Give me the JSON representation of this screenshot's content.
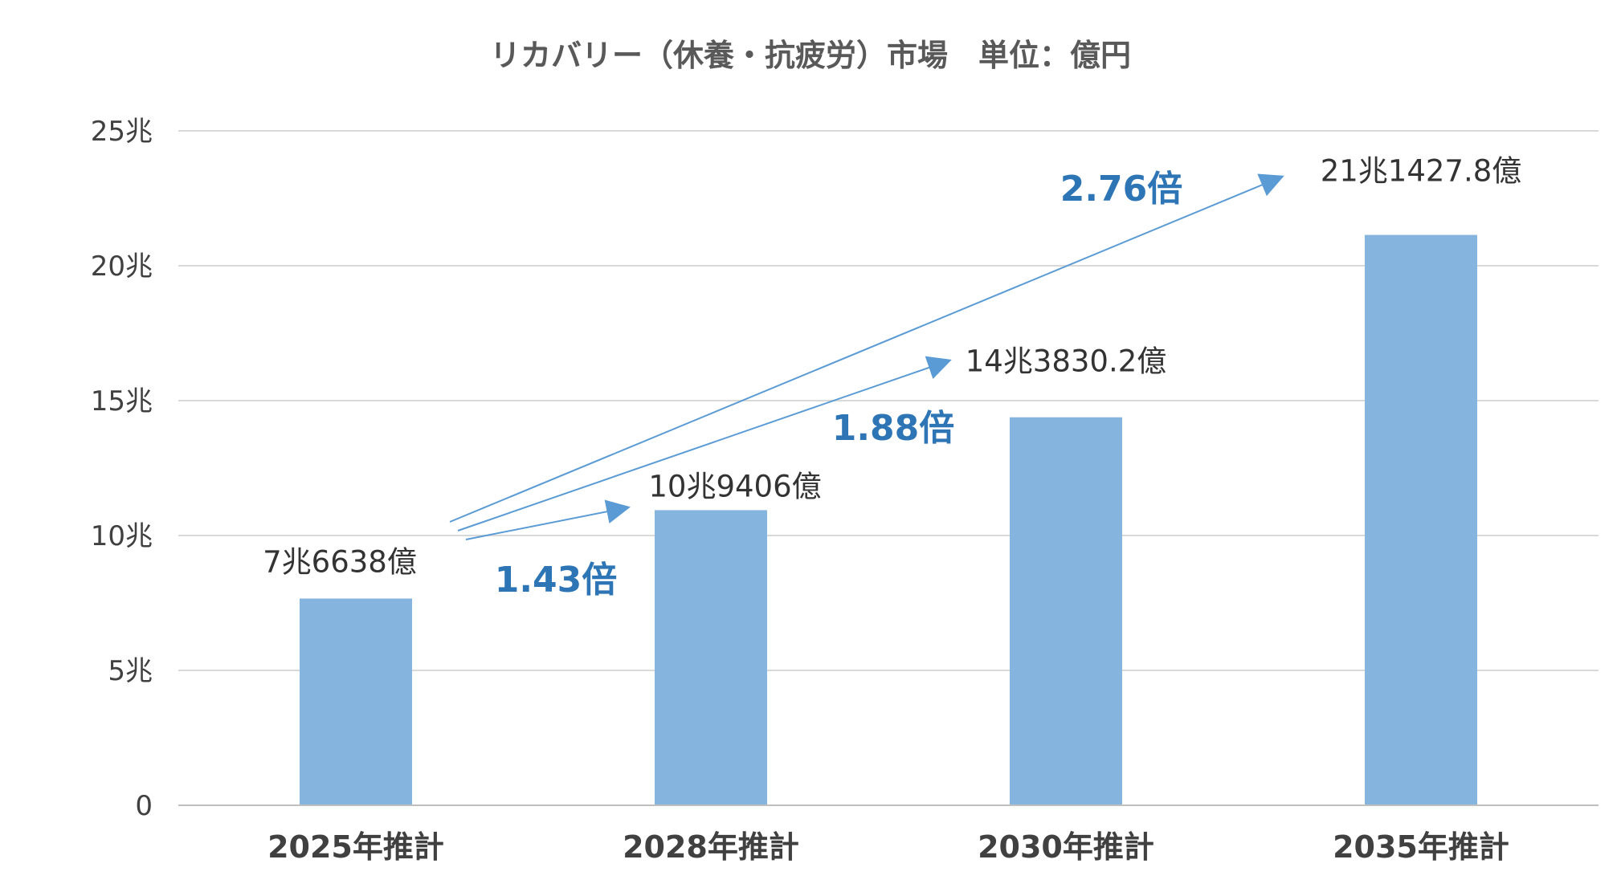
{
  "chart_data": {
    "type": "bar",
    "title": "リカバリー（休養・抗疲労）市場　単位：億円",
    "categories": [
      "2025年推計",
      "2028年推計",
      "2030年推計",
      "2035年推計"
    ],
    "values": [
      76638,
      109406,
      143830.2,
      211427.8
    ],
    "data_labels": [
      "7兆6638億",
      "10兆9406億",
      "14兆3830.2億",
      "21兆1427.8億"
    ],
    "ylim": [
      0,
      250000
    ],
    "yticks": [
      {
        "value": 0,
        "label": "0"
      },
      {
        "value": 50000,
        "label": "5兆"
      },
      {
        "value": 100000,
        "label": "10兆"
      },
      {
        "value": 150000,
        "label": "15兆"
      },
      {
        "value": 200000,
        "label": "20兆"
      },
      {
        "value": 250000,
        "label": "25兆"
      }
    ],
    "grid": true,
    "bar_color": "#85b4df",
    "growth_annotations": [
      {
        "from": 0,
        "to": 1,
        "label": "1.43倍"
      },
      {
        "from": 0,
        "to": 2,
        "label": "1.88倍"
      },
      {
        "from": 0,
        "to": 3,
        "label": "2.76倍"
      }
    ],
    "annotation_color": "#2e75b6",
    "arrow_color": "#5b9bd5"
  }
}
